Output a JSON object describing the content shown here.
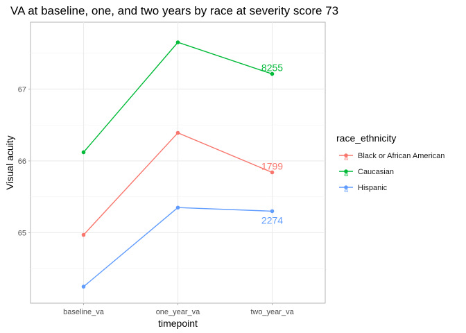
{
  "chart_data": {
    "type": "line",
    "title": "VA at baseline, one, and two years by race at severity score 73",
    "xlabel": "timepoint",
    "ylabel": "Visual acuity",
    "categories": [
      "baseline_va",
      "one_year_va",
      "two_year_va"
    ],
    "ylim": [
      64.02,
      67.93
    ],
    "yticks": [
      65,
      66,
      67
    ],
    "grid": true,
    "legend": {
      "title": "race_ethnicity",
      "position": "right",
      "key_glyph": "a"
    },
    "series": [
      {
        "name": "Black or African American",
        "color": "#F8766D",
        "values": [
          64.97,
          66.39,
          65.84
        ],
        "end_label": "1799"
      },
      {
        "name": "Caucasian",
        "color": "#00BA38",
        "values": [
          66.12,
          67.65,
          67.21
        ],
        "end_label": "8255"
      },
      {
        "name": "Hispanic",
        "color": "#619CFF",
        "values": [
          64.25,
          65.35,
          65.3
        ],
        "end_label": "2274"
      }
    ]
  }
}
